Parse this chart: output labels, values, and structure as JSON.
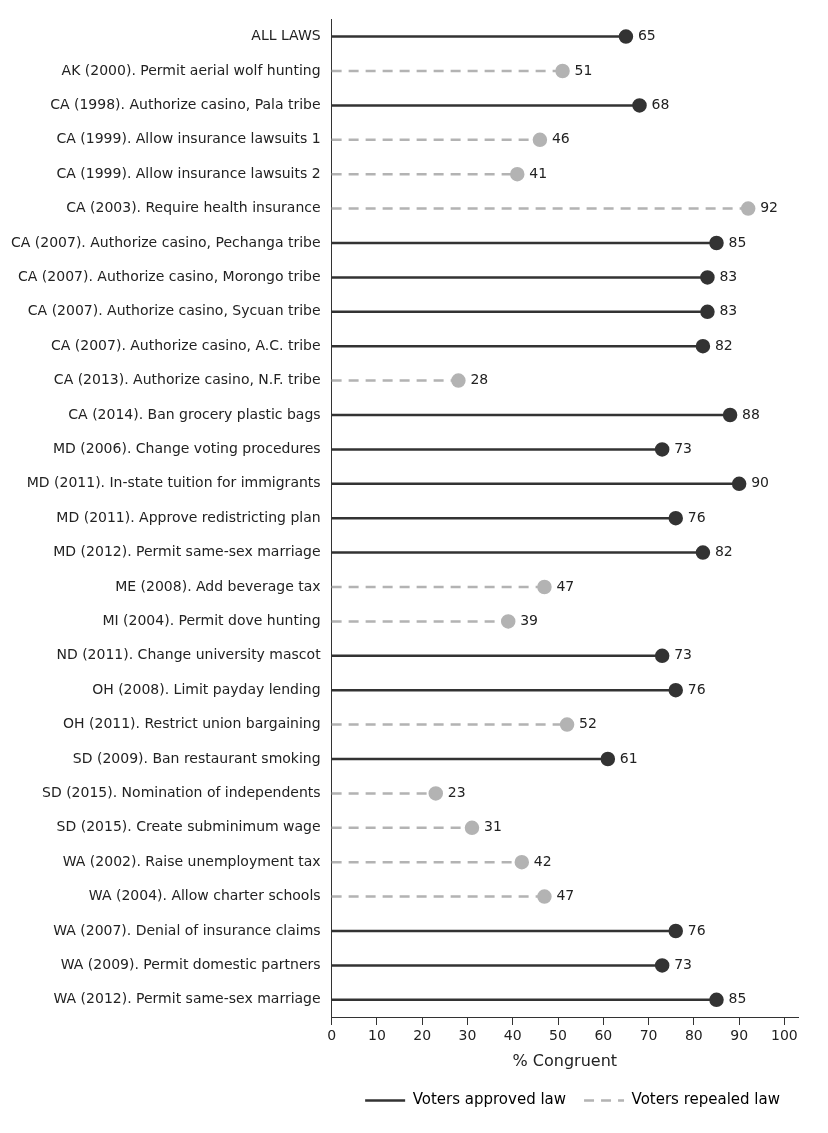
{
  "chart_data": {
    "type": "lollipop",
    "orientation": "horizontal",
    "xlabel": "% Congruent",
    "categories": [
      "ALL LAWS",
      "AK (2000). Permit aerial wolf hunting",
      "CA (1998). Authorize casino, Pala tribe",
      "CA (1999). Allow insurance lawsuits 1",
      "CA (1999). Allow insurance lawsuits 2",
      "CA (2003). Require health insurance",
      "CA (2007). Authorize casino, Pechanga tribe",
      "CA (2007). Authorize casino, Morongo tribe",
      "CA (2007). Authorize casino, Sycuan tribe",
      "CA (2007). Authorize casino, A.C. tribe",
      "CA (2013). Authorize casino, N.F. tribe",
      "CA (2014). Ban grocery plastic bags",
      "MD (2006). Change voting procedures",
      "MD (2011). In-state tuition for immigrants",
      "MD (2011). Approve redistricting plan",
      "MD (2012). Permit same-sex marriage",
      "ME (2008). Add beverage tax",
      "MI (2004). Permit dove hunting",
      "ND (2011). Change university mascot",
      "OH (2008). Limit payday lending",
      "OH (2011). Restrict union bargaining",
      "SD (2009). Ban restaurant smoking",
      "SD (2015). Nomination of independents",
      "SD (2015). Create subminimum wage",
      "WA (2002). Raise unemployment tax",
      "WA (2004). Allow charter schools",
      "WA (2007). Denial of insurance claims",
      "WA (2009). Permit domestic partners",
      "WA (2012). Permit same-sex marriage"
    ],
    "series": [
      {
        "name": "Voters approved law",
        "color": "#333333",
        "line_style": "solid",
        "values": [
          65,
          null,
          68,
          null,
          null,
          null,
          85,
          83,
          83,
          82,
          null,
          88,
          73,
          90,
          76,
          82,
          null,
          null,
          73,
          76,
          null,
          61,
          null,
          null,
          null,
          null,
          76,
          73,
          85
        ]
      },
      {
        "name": "Voters repealed law",
        "color": "#b3b3b3",
        "line_style": "dashed",
        "values": [
          null,
          51,
          null,
          46,
          41,
          92,
          null,
          null,
          null,
          null,
          28,
          null,
          null,
          null,
          null,
          null,
          47,
          39,
          null,
          null,
          52,
          null,
          23,
          31,
          42,
          47,
          null,
          null,
          null
        ]
      }
    ],
    "xlim": [
      0,
      103
    ],
    "xticks": [
      0,
      10,
      20,
      30,
      40,
      50,
      60,
      70,
      80,
      90,
      100
    ],
    "data_labels": true,
    "legend": "bottom",
    "marker": "circle",
    "grid": false
  }
}
